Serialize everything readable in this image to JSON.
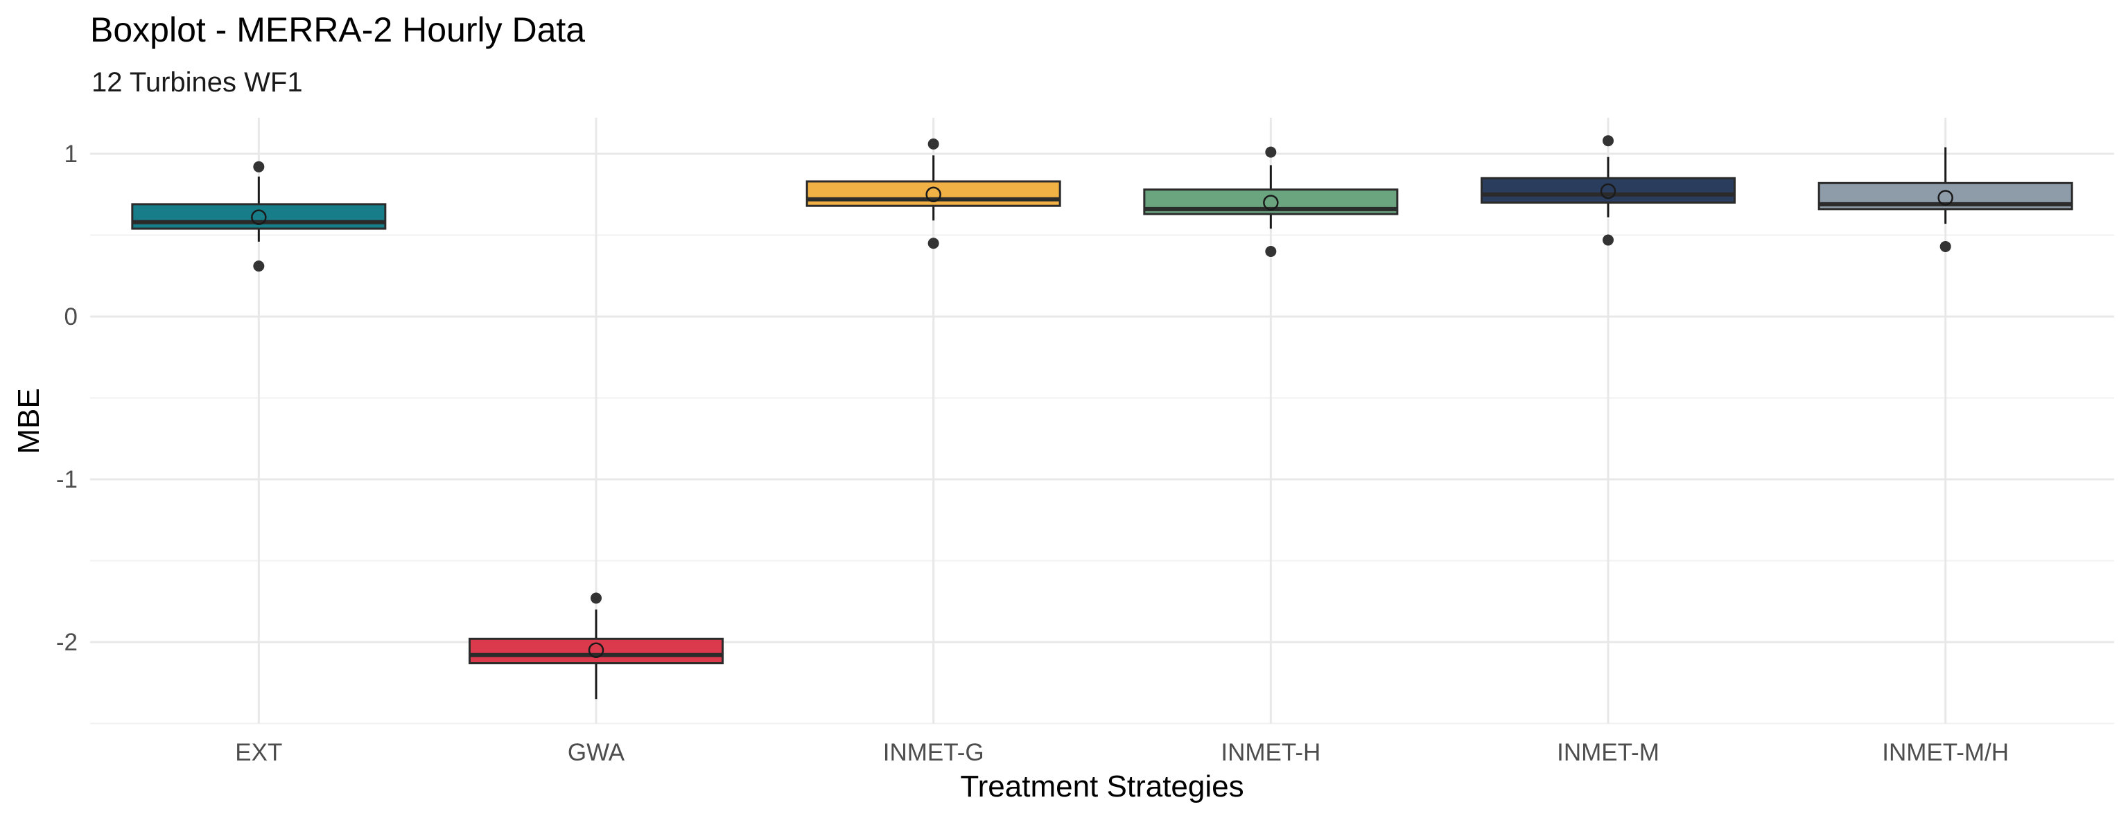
{
  "chart_data": {
    "type": "boxplot",
    "title": "Boxplot - MERRA-2 Hourly Data",
    "subtitle": "12 Turbines WF1",
    "xlabel": "Treatment Strategies",
    "ylabel": "MBE",
    "ylim": [
      -2.5,
      1.2
    ],
    "yticks": [
      -2,
      -1,
      0,
      1
    ],
    "grid": true,
    "categories": [
      "EXT",
      "GWA",
      "INMET-G",
      "INMET-H",
      "INMET-M",
      "INMET-M/H"
    ],
    "boxes": [
      {
        "category": "EXT",
        "whisker_low": 0.46,
        "q1": 0.54,
        "median": 0.58,
        "q3": 0.69,
        "whisker_high": 0.86,
        "mean": 0.61,
        "outliers": [
          0.92,
          0.31
        ],
        "color": "#177e89"
      },
      {
        "category": "GWA",
        "whisker_low": -2.35,
        "q1": -2.13,
        "median": -2.08,
        "q3": -1.98,
        "whisker_high": -1.8,
        "mean": -2.05,
        "outliers": [
          -1.73
        ],
        "color": "#db3a4d"
      },
      {
        "category": "INMET-G",
        "whisker_low": 0.59,
        "q1": 0.68,
        "median": 0.72,
        "q3": 0.83,
        "whisker_high": 0.99,
        "mean": 0.75,
        "outliers": [
          1.06,
          0.45
        ],
        "color": "#f2b145"
      },
      {
        "category": "INMET-H",
        "whisker_low": 0.54,
        "q1": 0.63,
        "median": 0.66,
        "q3": 0.78,
        "whisker_high": 0.93,
        "mean": 0.7,
        "outliers": [
          1.01,
          0.4
        ],
        "color": "#6aa580"
      },
      {
        "category": "INMET-M",
        "whisker_low": 0.61,
        "q1": 0.7,
        "median": 0.75,
        "q3": 0.85,
        "whisker_high": 0.98,
        "mean": 0.77,
        "outliers": [
          1.08,
          0.47
        ],
        "color": "#2a3d5c"
      },
      {
        "category": "INMET-M/H",
        "whisker_low": 0.57,
        "q1": 0.66,
        "median": 0.69,
        "q3": 0.82,
        "whisker_high": 1.04,
        "mean": 0.73,
        "outliers": [
          0.43
        ],
        "color": "#8e9ba8"
      }
    ]
  }
}
